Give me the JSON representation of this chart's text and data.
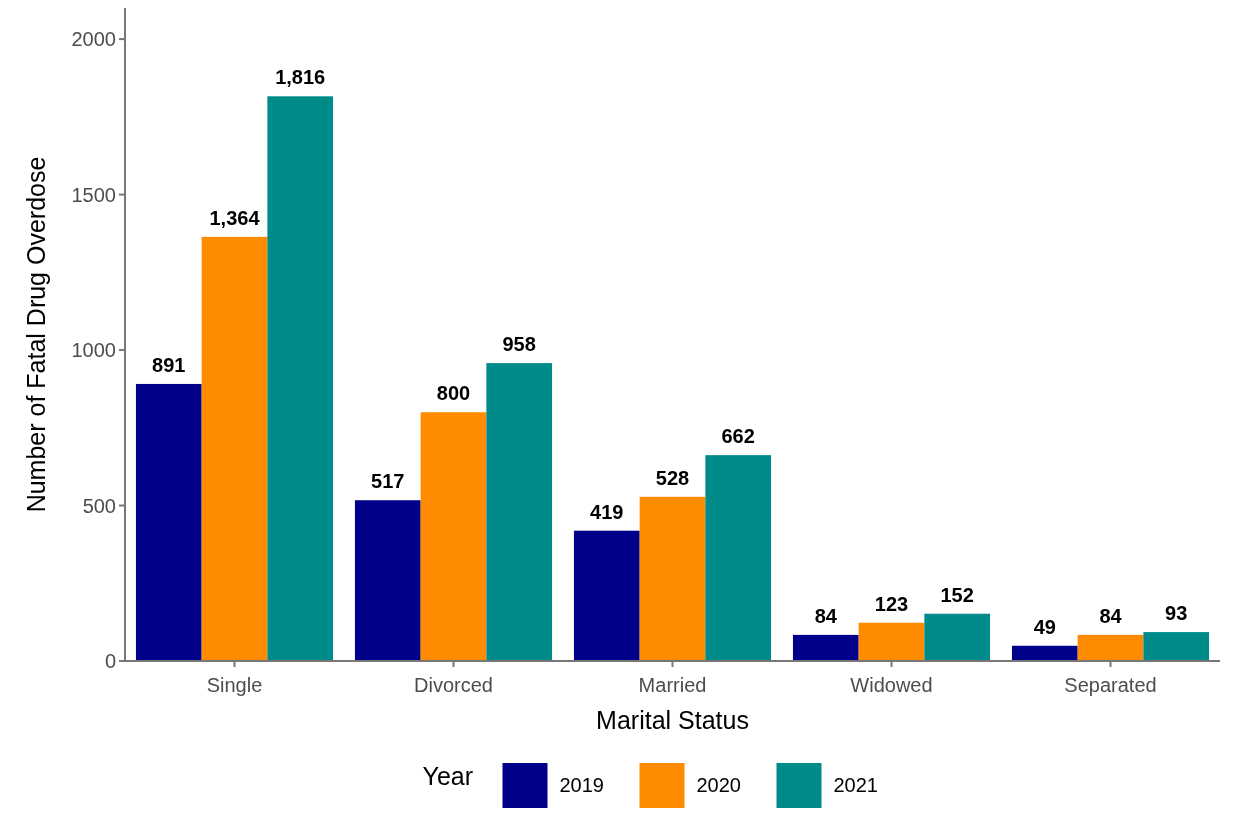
{
  "chart_data": {
    "type": "bar",
    "xlabel": "Marital Status",
    "ylabel": "Number of Fatal Drug Overdose",
    "legend_title": "Year",
    "legend": "bottom",
    "grid": false,
    "categories": [
      "Single",
      "Divorced",
      "Married",
      "Widowed",
      "Separated"
    ],
    "ylim": [
      0,
      2100
    ],
    "yticks": [
      0,
      500,
      1000,
      1500,
      2000
    ],
    "series": [
      {
        "name": "2019",
        "color": "#00008b",
        "values": [
          891,
          517,
          419,
          84,
          49
        ],
        "value_labels": [
          "891",
          "517",
          "419",
          "84",
          "49"
        ]
      },
      {
        "name": "2020",
        "color": "#ff8c00",
        "values": [
          1364,
          800,
          528,
          123,
          84
        ],
        "value_labels": [
          "1,364",
          "800",
          "528",
          "123",
          "84"
        ]
      },
      {
        "name": "2021",
        "color": "#008b8b",
        "values": [
          1816,
          958,
          662,
          152,
          93
        ],
        "value_labels": [
          "1,816",
          "958",
          "662",
          "152",
          "93"
        ]
      }
    ]
  }
}
